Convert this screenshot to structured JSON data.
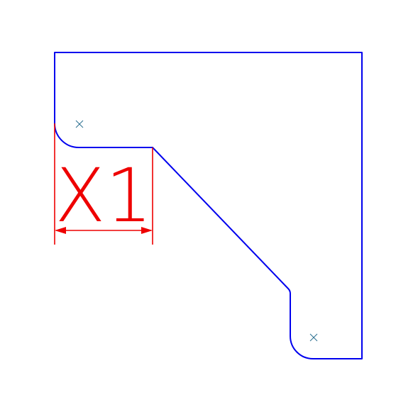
{
  "colors": {
    "outline": "#0000ee",
    "dimension": "#ee0000",
    "center_mark": "#2a6f8f",
    "background": "#ffffff"
  },
  "dimension": {
    "label": "X1"
  }
}
